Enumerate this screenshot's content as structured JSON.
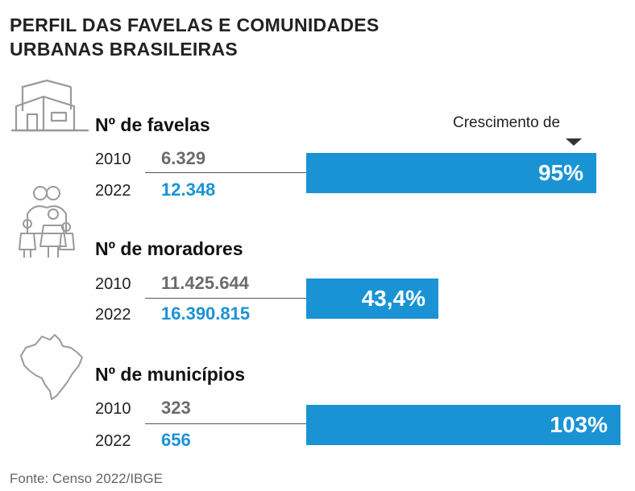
{
  "title": {
    "line1": "PERFIL DAS FAVELAS E COMUNIDADES",
    "line2": "URBANAS BRASILEIRAS"
  },
  "growth_label": "Crescimento de",
  "source": "Fonte: Censo 2022/IBGE",
  "colors": {
    "bar": "#1a93d4",
    "value_2010": "#6b6b6b",
    "value_2022": "#1a93d4"
  },
  "icons": [
    "houses-icon",
    "family-icon",
    "brazil-map-icon",
    "arrow-down-icon"
  ],
  "chart_data": {
    "type": "bar",
    "orientation": "horizontal",
    "sections": [
      {
        "label": "Nº de favelas",
        "year_a": "2010",
        "value_a": "6.329",
        "year_b": "2022",
        "value_b": "12.348",
        "growth": 95,
        "growth_label": "95%"
      },
      {
        "label": "Nº de moradores",
        "year_a": "2010",
        "value_a": "11.425.644",
        "year_b": "2022",
        "value_b": "16.390.815",
        "growth": 43.4,
        "growth_label": "43,4%"
      },
      {
        "label": "Nº de municípios",
        "year_a": "2010",
        "value_a": "323",
        "year_b": "2022",
        "value_b": "656",
        "growth": 103,
        "growth_label": "103%"
      }
    ]
  }
}
